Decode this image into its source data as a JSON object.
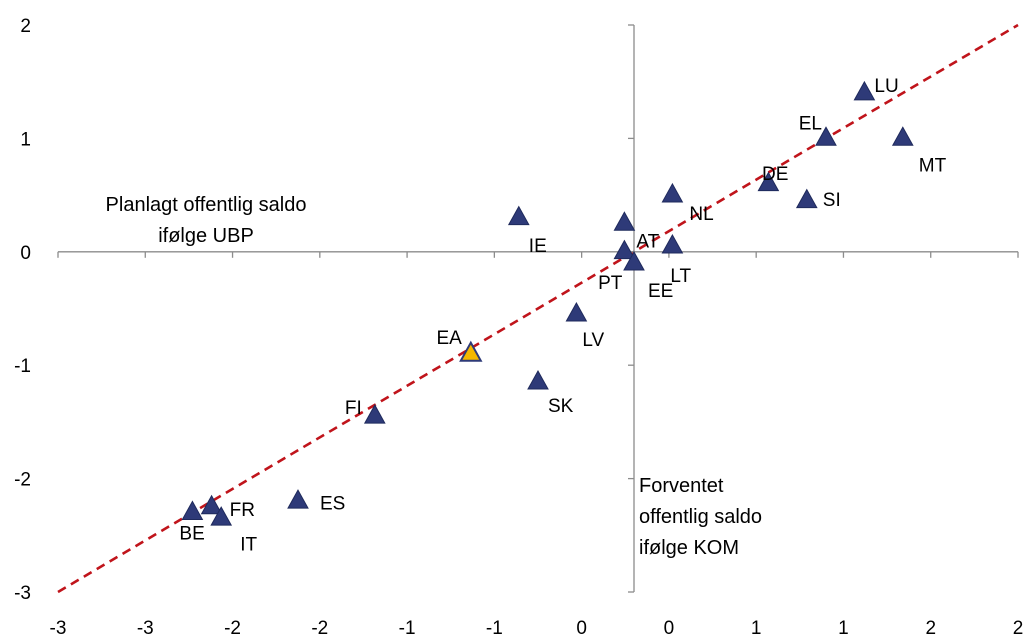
{
  "chart_data": {
    "type": "scatter",
    "title": "",
    "marker": "triangle",
    "colors": {
      "countries": "#2e3a78",
      "highlight": "#f5b800",
      "reference_line": "#c0141b",
      "axis": "#8c8c8c"
    },
    "xlim": [
      -3,
      2
    ],
    "ylim": [
      -3,
      2
    ],
    "x_tick_labels": [
      "-3",
      "-3",
      "-2",
      "-2",
      "-1",
      "-1",
      "0",
      "0",
      "1",
      "1",
      "2",
      "2"
    ],
    "y_tick_labels": [
      "2",
      "1",
      "0",
      "-1",
      "-2",
      "-3"
    ],
    "y_axis_label": [
      "Planlagt offentlig saldo",
      "ifølge UBP"
    ],
    "x_axis_label": [
      "Forventet",
      "offentlig saldo",
      "ifølge KOM"
    ],
    "reference_line": {
      "type": "diagonal",
      "style": "dashed",
      "from": [
        -3,
        -3
      ],
      "to": [
        2,
        2
      ]
    },
    "points": [
      {
        "label": "LU",
        "x": 1.2,
        "y": 1.4
      },
      {
        "label": "EL",
        "x": 1.0,
        "y": 1.0
      },
      {
        "label": "MT",
        "x": 1.4,
        "y": 1.0
      },
      {
        "label": "DE",
        "x": 0.7,
        "y": 0.6
      },
      {
        "label": "SI",
        "x": 0.9,
        "y": 0.45
      },
      {
        "label": "NL",
        "x": 0.2,
        "y": 0.5
      },
      {
        "label": "IE",
        "x": -0.6,
        "y": 0.3
      },
      {
        "label": "AT",
        "x": -0.05,
        "y": 0.25
      },
      {
        "label": "PT",
        "x": -0.05,
        "y": 0.0
      },
      {
        "label": "EE",
        "x": 0.0,
        "y": -0.1
      },
      {
        "label": "LT",
        "x": 0.2,
        "y": 0.05
      },
      {
        "label": "LV",
        "x": -0.3,
        "y": -0.55
      },
      {
        "label": "EA",
        "x": -0.85,
        "y": -0.9,
        "highlight": true
      },
      {
        "label": "SK",
        "x": -0.5,
        "y": -1.15
      },
      {
        "label": "FI",
        "x": -1.35,
        "y": -1.45
      },
      {
        "label": "ES",
        "x": -1.75,
        "y": -2.2
      },
      {
        "label": "FR",
        "x": -2.2,
        "y": -2.25
      },
      {
        "label": "BE",
        "x": -2.3,
        "y": -2.3
      },
      {
        "label": "IT",
        "x": -2.15,
        "y": -2.35
      }
    ]
  }
}
